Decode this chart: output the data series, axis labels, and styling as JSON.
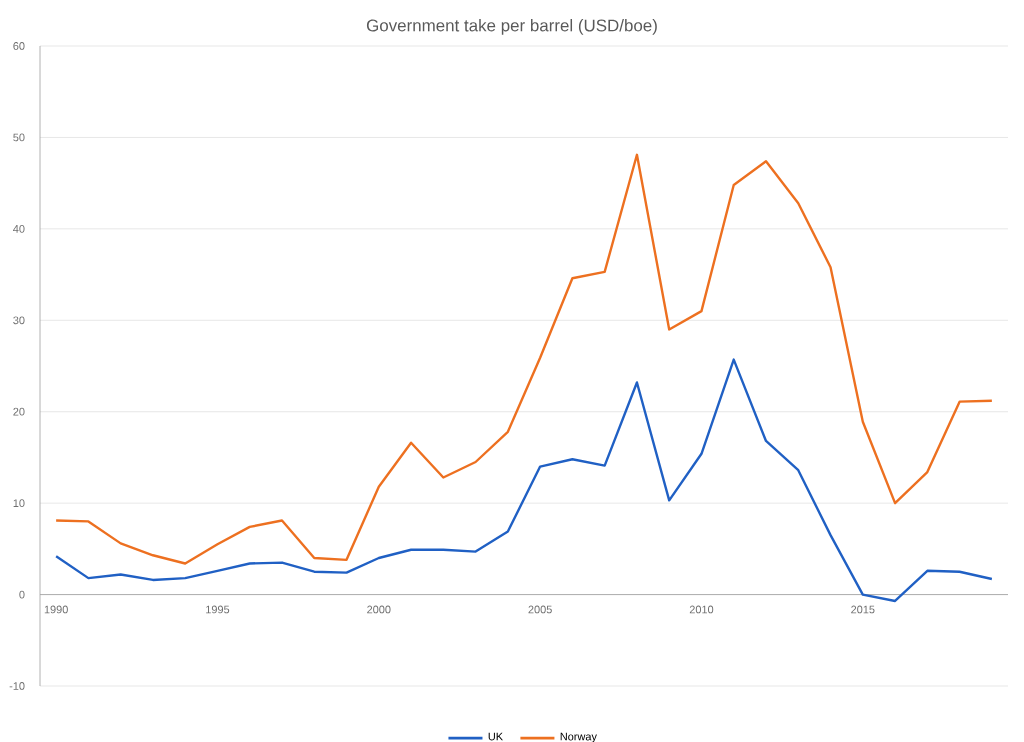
{
  "chart_data": {
    "type": "line",
    "title": "Government take per barrel (USD/boe)",
    "x": [
      1990,
      1991,
      1992,
      1993,
      1994,
      1995,
      1996,
      1997,
      1998,
      1999,
      2000,
      2001,
      2002,
      2003,
      2004,
      2005,
      2006,
      2007,
      2008,
      2009,
      2010,
      2011,
      2012,
      2013,
      2014,
      2015,
      2016,
      2017,
      2018,
      2019
    ],
    "series": [
      {
        "name": "UK",
        "color": "#2060c4",
        "values": [
          4.2,
          1.8,
          2.2,
          1.6,
          1.8,
          2.6,
          3.4,
          3.5,
          2.5,
          2.4,
          4.0,
          4.9,
          4.9,
          4.7,
          6.9,
          14.0,
          14.8,
          14.1,
          23.2,
          10.3,
          15.4,
          25.7,
          16.8,
          13.6,
          6.5,
          0.0,
          -0.7,
          2.6,
          2.5,
          1.7
        ]
      },
      {
        "name": "Norway",
        "color": "#ed7020",
        "values": [
          8.1,
          8.0,
          5.6,
          4.3,
          3.4,
          5.5,
          7.4,
          8.1,
          4.0,
          3.8,
          11.8,
          16.6,
          12.8,
          14.5,
          17.8,
          25.9,
          34.6,
          35.3,
          48.1,
          29.0,
          31.0,
          44.8,
          47.4,
          42.8,
          35.8,
          18.9,
          10.0,
          13.4,
          21.1,
          21.2
        ]
      }
    ],
    "xlim": [
      1989.5,
      2019.5
    ],
    "xticks": [
      1990,
      1995,
      2000,
      2005,
      2010,
      2015
    ],
    "ylim": [
      -10,
      60
    ],
    "yticks": [
      -10,
      0,
      10,
      20,
      30,
      40,
      50,
      60
    ],
    "grid": "y",
    "legend": "bottom",
    "marker": "none",
    "line_style": "solid"
  }
}
